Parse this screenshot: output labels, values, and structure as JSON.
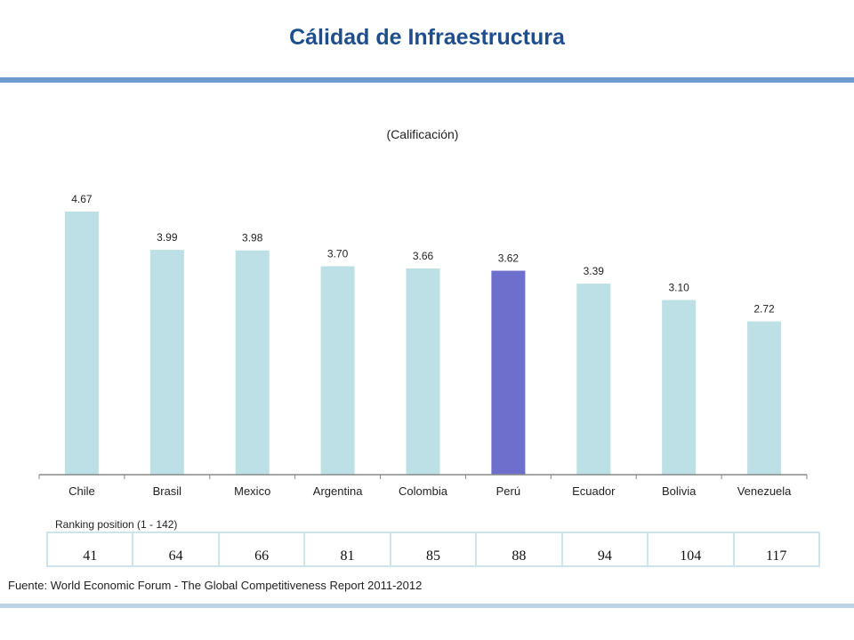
{
  "header": {
    "title": "Cálidad de Infraestructura"
  },
  "chart_data": {
    "type": "bar",
    "title": "Cálidad de Infraestructura",
    "subtitle": "(Calificación)",
    "categories": [
      "Chile",
      "Brasil",
      "Mexico",
      "Argentina",
      "Colombia",
      "Perú",
      "Ecuador",
      "Bolivia",
      "Venezuela"
    ],
    "values": [
      4.67,
      3.99,
      3.98,
      3.7,
      3.66,
      3.62,
      3.39,
      3.1,
      2.72
    ],
    "value_labels": [
      "4.67",
      "3.99",
      "3.98",
      "3.70",
      "3.66",
      "3.62",
      "3.39",
      "3.10",
      "2.72"
    ],
    "highlight": "Perú",
    "colors": {
      "bar": "#BCE0E5",
      "highlight": "#6E6ECC",
      "axis": "#888888"
    },
    "xlabel": "",
    "ylabel": "",
    "ylim": [
      0,
      4.67
    ]
  },
  "ranking": {
    "caption": "Ranking position (1 - 142)",
    "values": [
      "41",
      "64",
      "66",
      "81",
      "85",
      "88",
      "94",
      "104",
      "117"
    ]
  },
  "footer": {
    "source": "Fuente: World Economic Forum - The Global Competitiveness Report  2011-2012"
  }
}
